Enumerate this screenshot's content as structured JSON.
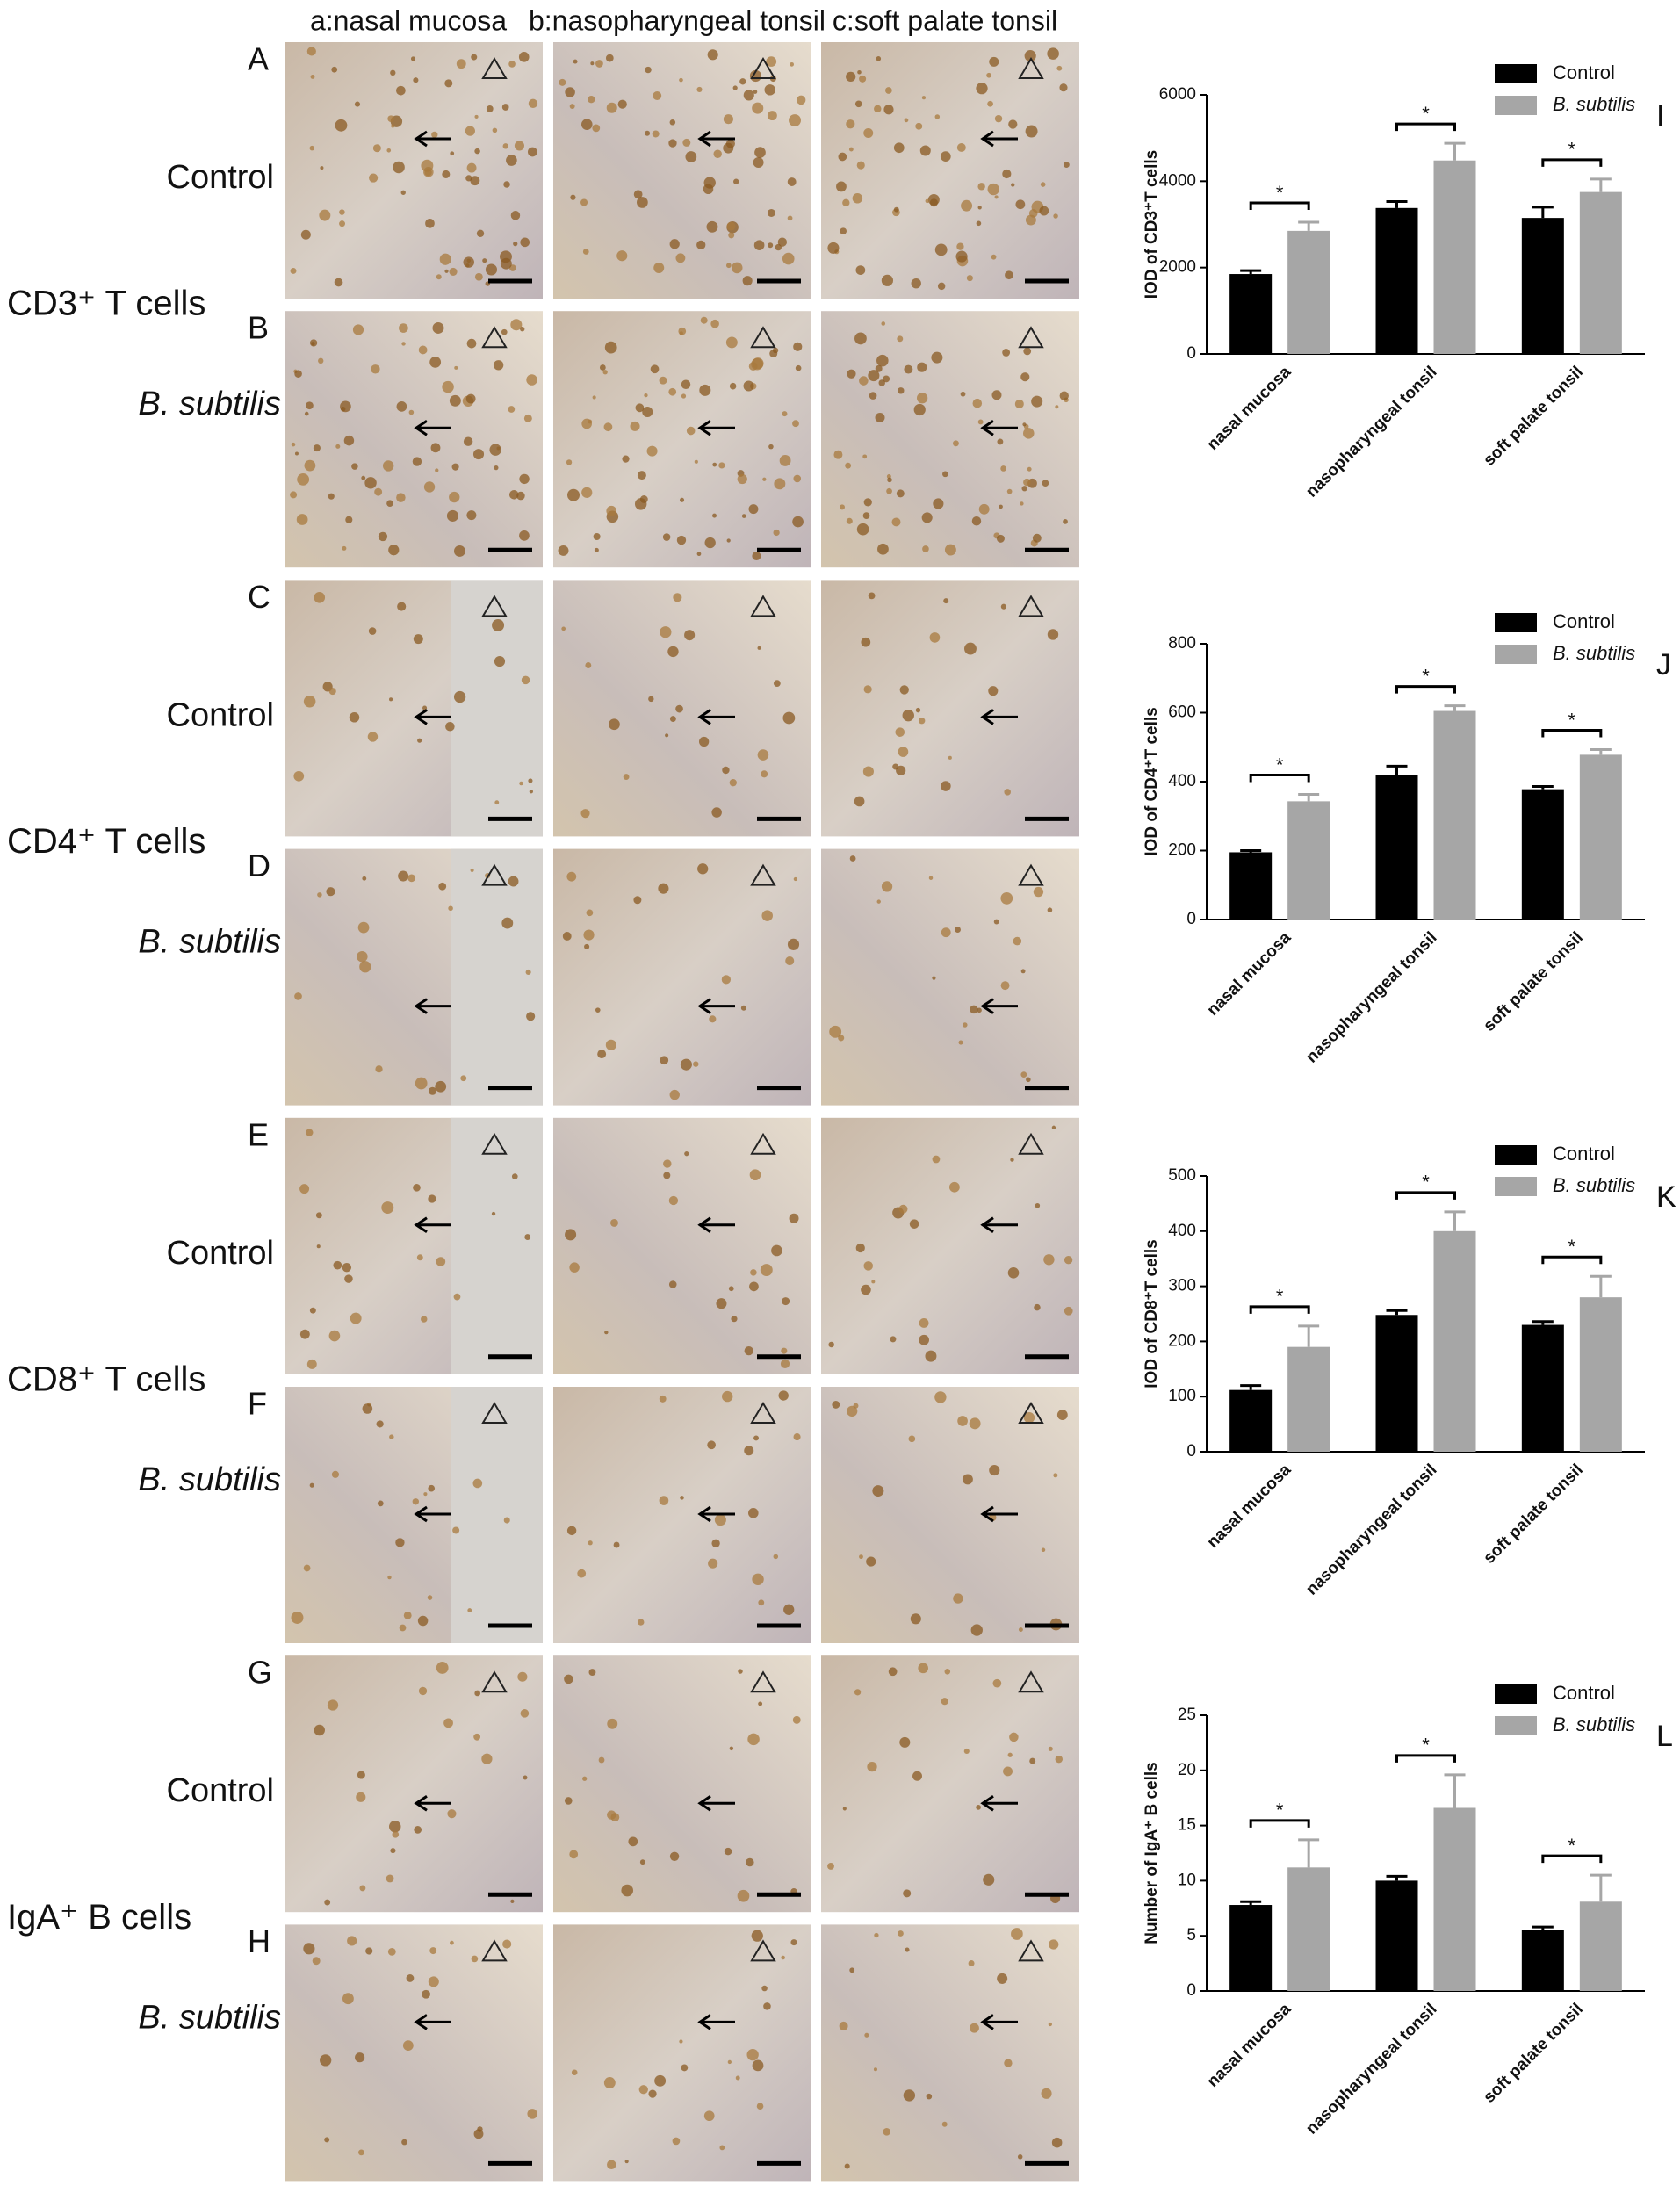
{
  "figure": {
    "column_headers": [
      "a:nasal mucosa",
      "b:nasopharyngeal tonsil",
      "c:soft palate tonsil"
    ],
    "rows": [
      {
        "letter": "A",
        "label": "Control"
      },
      {
        "letter": "B",
        "label": "B. subtilis"
      },
      {
        "letter": "C",
        "label": "Control"
      },
      {
        "letter": "D",
        "label": "B. subtilis"
      },
      {
        "letter": "E",
        "label": "Control"
      },
      {
        "letter": "F",
        "label": "B. subtilis"
      },
      {
        "letter": "G",
        "label": "Control"
      },
      {
        "letter": "H",
        "label": "B. subtilis"
      }
    ],
    "groups": [
      "CD3⁺ T cells",
      "CD4⁺ T cells",
      "CD8⁺ T cells",
      "IgA⁺ B cells"
    ]
  },
  "chart_data": [
    {
      "type": "bar",
      "panel": "I",
      "ylabel": "IOD of CD3⁺T cells",
      "categories": [
        "nasal mucosa",
        "nasopharyngeal tonsil",
        "soft palate tonsil"
      ],
      "series": [
        {
          "name": "Control",
          "color": "#000000",
          "values": [
            1850,
            3380,
            3150
          ],
          "errors": [
            80,
            150,
            250
          ]
        },
        {
          "name": "B. subtilis",
          "color": "#a6a6a6",
          "values": [
            2850,
            4480,
            3750
          ],
          "errors": [
            200,
            400,
            300
          ]
        }
      ],
      "ylim": [
        0,
        6000
      ],
      "yticks": [
        0,
        2000,
        4000,
        6000
      ],
      "significance": [
        "*",
        "*",
        "*"
      ]
    },
    {
      "type": "bar",
      "panel": "J",
      "ylabel": "IOD of CD4⁺T cells",
      "categories": [
        "nasal mucosa",
        "nasopharyngeal tonsil",
        "soft palate tonsil"
      ],
      "series": [
        {
          "name": "Control",
          "color": "#000000",
          "values": [
            195,
            420,
            378
          ],
          "errors": [
            5,
            25,
            8
          ]
        },
        {
          "name": "B. subtilis",
          "color": "#a6a6a6",
          "values": [
            343,
            605,
            478
          ],
          "errors": [
            20,
            15,
            15
          ]
        }
      ],
      "ylim": [
        0,
        800
      ],
      "yticks": [
        0,
        200,
        400,
        600,
        800
      ],
      "significance": [
        "*",
        "*",
        "*"
      ]
    },
    {
      "type": "bar",
      "panel": "K",
      "ylabel": "IOD of CD8⁺T cells",
      "categories": [
        "nasal mucosa",
        "nasopharyngeal tonsil",
        "soft palate tonsil"
      ],
      "series": [
        {
          "name": "Control",
          "color": "#000000",
          "values": [
            112,
            248,
            230
          ],
          "errors": [
            8,
            8,
            6
          ]
        },
        {
          "name": "B. subtilis",
          "color": "#a6a6a6",
          "values": [
            190,
            400,
            280
          ],
          "errors": [
            38,
            35,
            38
          ]
        }
      ],
      "ylim": [
        0,
        500
      ],
      "yticks": [
        0,
        100,
        200,
        300,
        400,
        500
      ],
      "significance": [
        "*",
        "*",
        "*"
      ]
    },
    {
      "type": "bar",
      "panel": "L",
      "ylabel": "Number of IgA⁺ B cells",
      "categories": [
        "nasal mucosa",
        "nasopharyngeal tonsil",
        "soft palate tonsil"
      ],
      "series": [
        {
          "name": "Control",
          "color": "#000000",
          "values": [
            7.8,
            10,
            5.5
          ],
          "errors": [
            0.3,
            0.4,
            0.3
          ]
        },
        {
          "name": "B. subtilis",
          "color": "#a6a6a6",
          "values": [
            11.2,
            16.6,
            8.1
          ],
          "errors": [
            2.5,
            3,
            2.4
          ]
        }
      ],
      "ylim": [
        0,
        25
      ],
      "yticks": [
        0,
        5,
        10,
        15,
        20,
        25
      ],
      "significance": [
        "*",
        "*",
        "*"
      ]
    }
  ]
}
